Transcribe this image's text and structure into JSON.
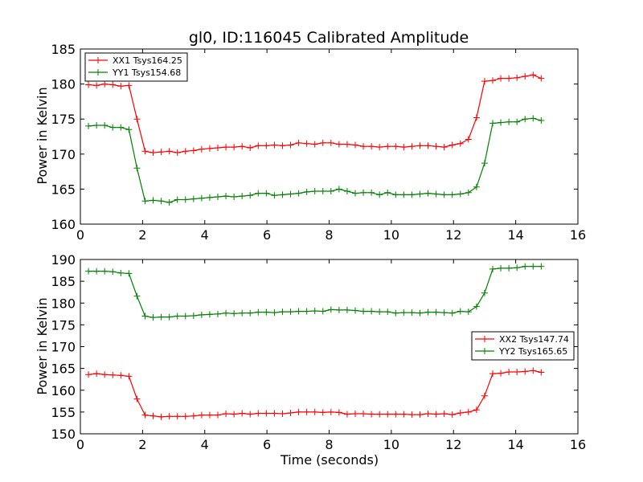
{
  "title": "gl0, ID:116045 Calibrated Amplitude",
  "colors": {
    "red": "#ff0000",
    "green": "#008000"
  },
  "chart_data": [
    {
      "type": "line",
      "ylabel": "Power in Kelvin",
      "xlabel": "",
      "xlim": [
        0,
        16
      ],
      "ylim": [
        160,
        185
      ],
      "xticks": [
        "0",
        "2",
        "4",
        "6",
        "8",
        "10",
        "12",
        "14",
        "16"
      ],
      "yticks": [
        "160",
        "165",
        "170",
        "175",
        "180",
        "185"
      ],
      "grid": false,
      "legend_position": "top-left",
      "x": [
        0.26,
        0.52,
        0.78,
        1.04,
        1.3,
        1.56,
        1.82,
        2.08,
        2.34,
        2.6,
        2.86,
        3.12,
        3.38,
        3.64,
        3.9,
        4.16,
        4.42,
        4.68,
        4.94,
        5.2,
        5.46,
        5.72,
        5.98,
        6.24,
        6.5,
        6.76,
        7.02,
        7.28,
        7.54,
        7.8,
        8.06,
        8.32,
        8.58,
        8.84,
        9.1,
        9.36,
        9.62,
        9.88,
        10.14,
        10.4,
        10.66,
        10.92,
        11.18,
        11.44,
        11.7,
        11.96,
        12.22,
        12.48,
        12.74,
        13.0,
        13.26,
        13.52,
        13.78,
        14.04,
        14.3,
        14.56,
        14.82
      ],
      "series": [
        {
          "name": "XX1 Tsys164.25",
          "color": "#ff0000",
          "values": [
            179.9,
            179.8,
            180.0,
            179.9,
            179.7,
            179.8,
            175.0,
            170.4,
            170.2,
            170.3,
            170.4,
            170.2,
            170.4,
            170.5,
            170.7,
            170.8,
            170.9,
            171.0,
            171.0,
            171.1,
            170.9,
            171.2,
            171.2,
            171.3,
            171.2,
            171.3,
            171.6,
            171.5,
            171.4,
            171.6,
            171.6,
            171.4,
            171.4,
            171.3,
            171.1,
            171.1,
            171.0,
            171.1,
            171.1,
            171.0,
            171.1,
            171.2,
            171.2,
            171.1,
            171.0,
            171.3,
            171.5,
            172.1,
            175.2,
            180.4,
            180.5,
            180.8,
            180.8,
            180.9,
            181.1,
            181.3,
            180.8
          ]
        },
        {
          "name": "YY1 Tsys154.68",
          "color": "#008000",
          "values": [
            174.0,
            174.1,
            174.1,
            173.8,
            173.8,
            173.5,
            168.0,
            163.3,
            163.4,
            163.3,
            163.1,
            163.5,
            163.5,
            163.6,
            163.7,
            163.8,
            163.9,
            164.0,
            163.9,
            164.0,
            164.1,
            164.4,
            164.4,
            164.1,
            164.2,
            164.3,
            164.4,
            164.6,
            164.7,
            164.7,
            164.7,
            165.0,
            164.7,
            164.4,
            164.5,
            164.5,
            164.2,
            164.5,
            164.2,
            164.2,
            164.2,
            164.3,
            164.4,
            164.3,
            164.2,
            164.2,
            164.3,
            164.5,
            165.3,
            168.7,
            174.4,
            174.5,
            174.6,
            174.6,
            175.0,
            175.1,
            174.8
          ]
        }
      ]
    },
    {
      "type": "line",
      "ylabel": "Power in Kelvin",
      "xlabel": "Time (seconds)",
      "xlim": [
        0,
        16
      ],
      "ylim": [
        150,
        190
      ],
      "xticks": [
        "0",
        "2",
        "4",
        "6",
        "8",
        "10",
        "12",
        "14",
        "16"
      ],
      "yticks": [
        "150",
        "155",
        "160",
        "165",
        "170",
        "175",
        "180",
        "185",
        "190"
      ],
      "grid": false,
      "legend_position": "center-right",
      "x": [
        0.26,
        0.52,
        0.78,
        1.04,
        1.3,
        1.56,
        1.82,
        2.08,
        2.34,
        2.6,
        2.86,
        3.12,
        3.38,
        3.64,
        3.9,
        4.16,
        4.42,
        4.68,
        4.94,
        5.2,
        5.46,
        5.72,
        5.98,
        6.24,
        6.5,
        6.76,
        7.02,
        7.28,
        7.54,
        7.8,
        8.06,
        8.32,
        8.58,
        8.84,
        9.1,
        9.36,
        9.62,
        9.88,
        10.14,
        10.4,
        10.66,
        10.92,
        11.18,
        11.44,
        11.7,
        11.96,
        12.22,
        12.48,
        12.74,
        13.0,
        13.26,
        13.52,
        13.78,
        14.04,
        14.3,
        14.56,
        14.82
      ],
      "series": [
        {
          "name": "XX2 Tsys147.74",
          "color": "#ff0000",
          "values": [
            163.6,
            163.8,
            163.6,
            163.5,
            163.4,
            163.2,
            158.0,
            154.3,
            154.1,
            153.9,
            154.0,
            154.0,
            154.0,
            154.1,
            154.3,
            154.3,
            154.3,
            154.6,
            154.5,
            154.7,
            154.5,
            154.7,
            154.7,
            154.7,
            154.6,
            154.8,
            155.0,
            155.0,
            155.0,
            154.9,
            155.0,
            154.9,
            154.5,
            154.6,
            154.6,
            154.5,
            154.5,
            154.5,
            154.5,
            154.5,
            154.4,
            154.4,
            154.6,
            154.5,
            154.6,
            154.4,
            154.8,
            155.0,
            155.5,
            158.7,
            163.8,
            163.9,
            164.2,
            164.2,
            164.3,
            164.5,
            164.1
          ]
        },
        {
          "name": "YY2 Tsys165.65",
          "color": "#008000",
          "values": [
            187.3,
            187.3,
            187.3,
            187.2,
            186.9,
            186.8,
            181.6,
            177.0,
            176.7,
            176.8,
            176.8,
            177.0,
            177.0,
            177.1,
            177.3,
            177.4,
            177.5,
            177.7,
            177.6,
            177.7,
            177.7,
            177.9,
            177.9,
            177.8,
            178.0,
            178.0,
            178.1,
            178.1,
            178.2,
            178.1,
            178.5,
            178.4,
            178.4,
            178.3,
            178.1,
            178.1,
            178.0,
            178.0,
            177.7,
            177.8,
            177.8,
            177.7,
            177.9,
            177.9,
            177.8,
            177.7,
            178.1,
            178.0,
            179.2,
            182.3,
            187.8,
            188.0,
            188.0,
            188.1,
            188.4,
            188.4,
            188.4
          ]
        }
      ]
    }
  ]
}
